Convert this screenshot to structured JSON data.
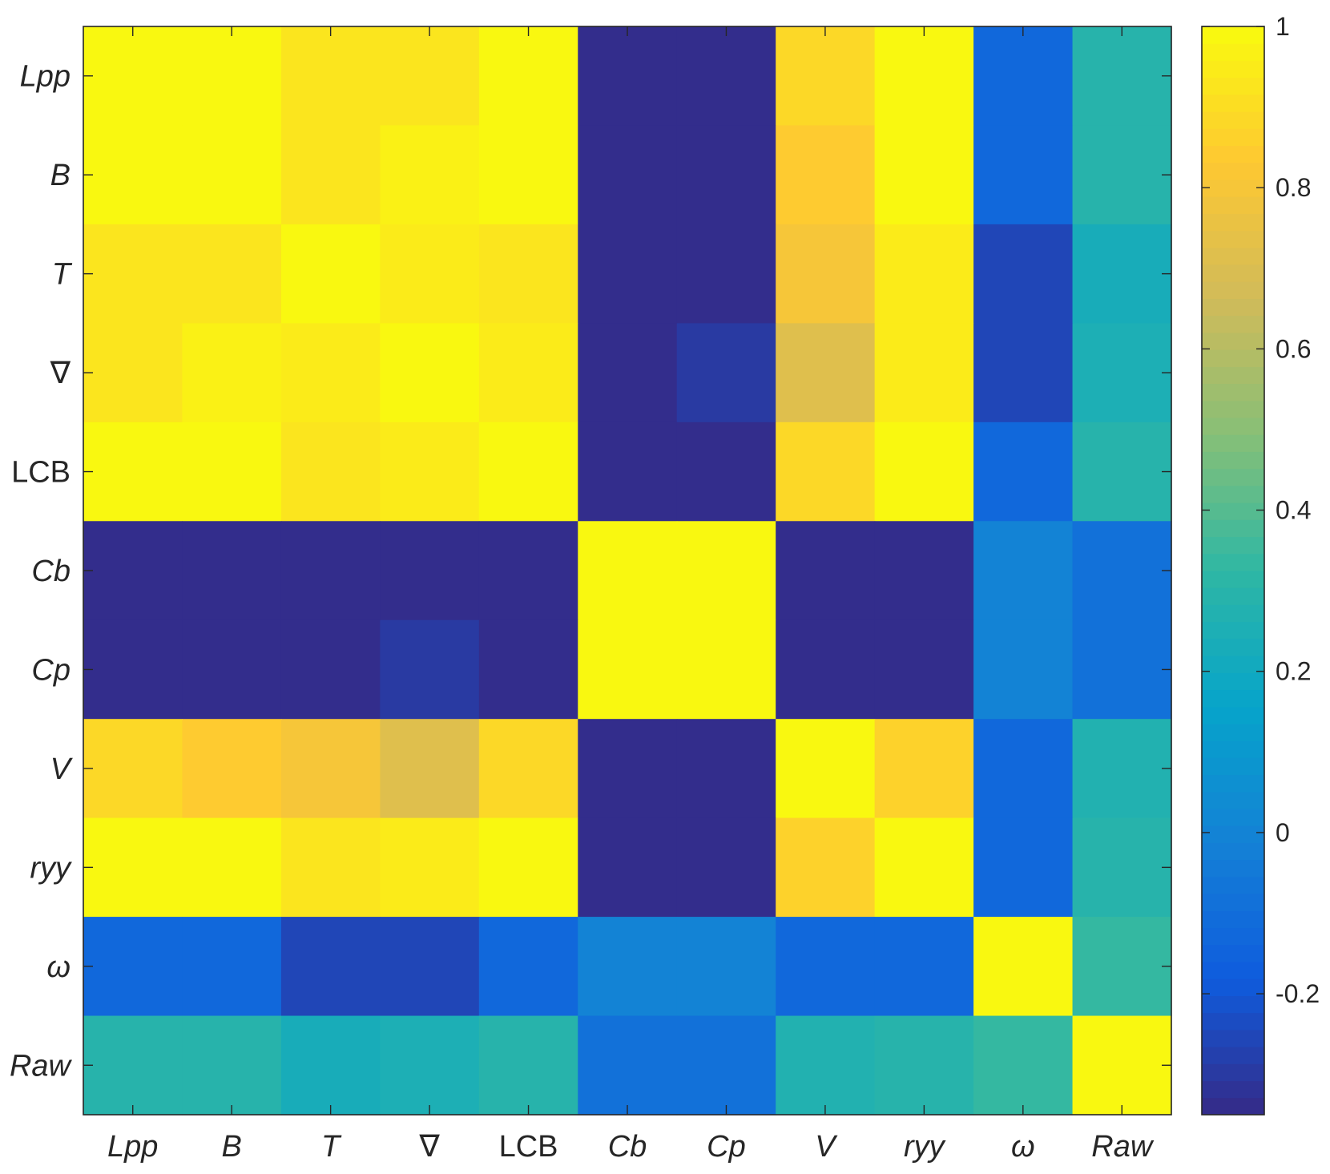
{
  "chart_data": {
    "type": "heatmap",
    "title": "",
    "xlabel": "",
    "ylabel": "",
    "categories": [
      "Lpp",
      "B",
      "T",
      "∇",
      "LCB",
      "Cb",
      "Cp",
      "V",
      "ryy",
      "ω",
      "Raw"
    ],
    "italic_categories": [
      true,
      true,
      true,
      false,
      false,
      true,
      true,
      true,
      true,
      true,
      true
    ],
    "matrix": [
      [
        1.0,
        1.0,
        0.93,
        0.93,
        1.0,
        -0.35,
        -0.35,
        0.88,
        1.0,
        -0.12,
        0.3
      ],
      [
        1.0,
        1.0,
        0.93,
        0.97,
        1.0,
        -0.35,
        -0.35,
        0.84,
        1.0,
        -0.12,
        0.3
      ],
      [
        0.93,
        0.93,
        1.0,
        0.94,
        0.93,
        -0.35,
        -0.35,
        0.8,
        0.94,
        -0.25,
        0.22
      ],
      [
        0.93,
        0.97,
        0.94,
        1.0,
        0.94,
        -0.35,
        -0.3,
        0.72,
        0.94,
        -0.25,
        0.25
      ],
      [
        1.0,
        1.0,
        0.93,
        0.94,
        1.0,
        -0.35,
        -0.35,
        0.88,
        1.0,
        -0.12,
        0.3
      ],
      [
        -0.35,
        -0.35,
        -0.35,
        -0.35,
        -0.35,
        1.0,
        1.0,
        -0.35,
        -0.35,
        0.0,
        -0.08
      ],
      [
        -0.35,
        -0.35,
        -0.35,
        -0.3,
        -0.35,
        1.0,
        1.0,
        -0.35,
        -0.35,
        0.0,
        -0.08
      ],
      [
        0.88,
        0.84,
        0.8,
        0.72,
        0.88,
        -0.35,
        -0.35,
        1.0,
        0.86,
        -0.12,
        0.27
      ],
      [
        1.0,
        1.0,
        0.93,
        0.94,
        1.0,
        -0.35,
        -0.35,
        0.86,
        1.0,
        -0.12,
        0.3
      ],
      [
        -0.12,
        -0.12,
        -0.25,
        -0.25,
        -0.12,
        0.0,
        0.0,
        -0.12,
        -0.12,
        1.0,
        0.33
      ],
      [
        0.3,
        0.3,
        0.22,
        0.25,
        0.3,
        -0.08,
        -0.08,
        0.27,
        0.3,
        0.33,
        1.0
      ]
    ],
    "colorbar": {
      "min": -0.35,
      "max": 1.0,
      "ticks": [
        1,
        0.8,
        0.6,
        0.4,
        0.2,
        0,
        -0.2
      ],
      "tick_labels": [
        "1",
        "0.8",
        "0.6",
        "0.4",
        "0.2",
        "0",
        "-0.2"
      ],
      "levels": 64,
      "colormap": "parula"
    },
    "grid": false,
    "legend": "colorbar right"
  },
  "colors": {
    "axis": "#262626",
    "background": "#ffffff",
    "parula_stops": [
      "#352a87",
      "#0f5cdd",
      "#1481d6",
      "#06a4ca",
      "#2eb7a4",
      "#87bf77",
      "#d1bb59",
      "#fec832",
      "#f9fb0e"
    ]
  }
}
